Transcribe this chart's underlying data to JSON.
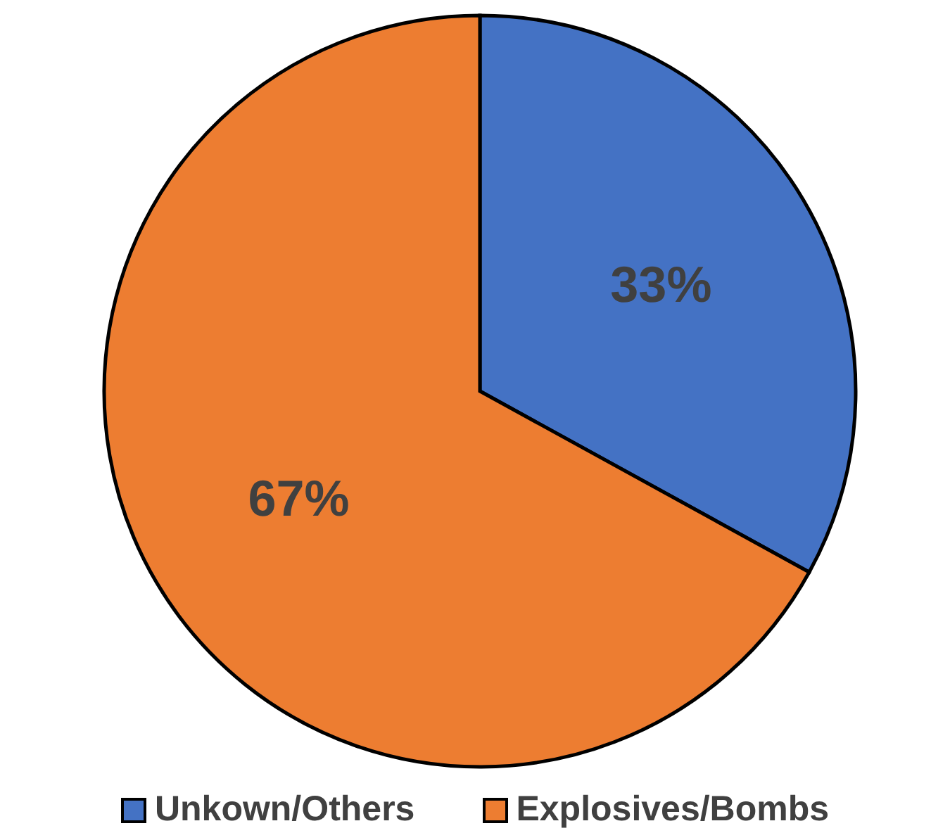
{
  "chart_data": {
    "type": "pie",
    "categories": [
      "Unkown/Others",
      "Explosives/Bombs"
    ],
    "values": [
      33,
      67
    ],
    "colors": [
      "#4472c4",
      "#ed7d31"
    ],
    "value_labels": [
      "33%",
      "67%"
    ],
    "legend": "bottom"
  }
}
